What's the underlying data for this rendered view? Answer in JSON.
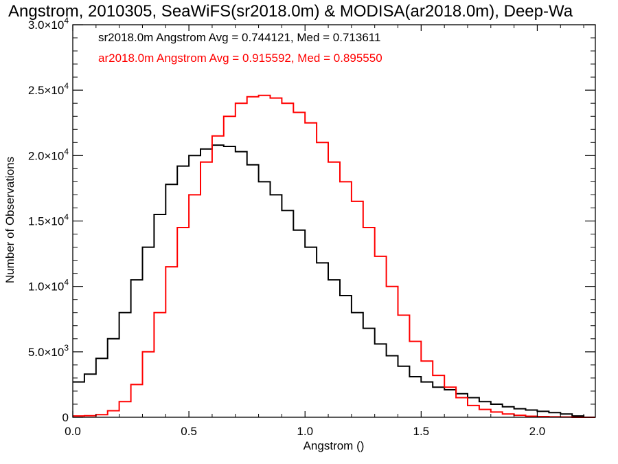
{
  "chart_data": {
    "type": "line",
    "title": "Angstrom, 2010305, SeaWiFS(sr2018.0m) & MODISA(ar2018.0m), Deep-Wa",
    "xlabel": "Angstrom ()",
    "ylabel": "Number of Observations",
    "xlim": [
      0.0,
      2.25
    ],
    "ylim": [
      0,
      30000
    ],
    "grid": false,
    "legend_position": "top-left",
    "x_ticks": [
      {
        "value": 0.0,
        "label": "0.0"
      },
      {
        "value": 0.5,
        "label": "0.5"
      },
      {
        "value": 1.0,
        "label": "1.0"
      },
      {
        "value": 1.5,
        "label": "1.5"
      },
      {
        "value": 2.0,
        "label": "2.0"
      }
    ],
    "y_ticks": [
      {
        "value": 0,
        "mant": "0",
        "exp": ""
      },
      {
        "value": 5000,
        "mant": "5.0×10",
        "exp": "3"
      },
      {
        "value": 10000,
        "mant": "1.0×10",
        "exp": "4"
      },
      {
        "value": 15000,
        "mant": "1.5×10",
        "exp": "4"
      },
      {
        "value": 20000,
        "mant": "2.0×10",
        "exp": "4"
      },
      {
        "value": 25000,
        "mant": "2.5×10",
        "exp": "4"
      },
      {
        "value": 30000,
        "mant": "3.0×10",
        "exp": "4"
      }
    ],
    "series": [
      {
        "name": "sr2018.0m Angstrom Avg = 0.744121, Med = 0.713611",
        "color": "#000000",
        "x": [
          0.0,
          0.05,
          0.1,
          0.15,
          0.2,
          0.25,
          0.3,
          0.35,
          0.4,
          0.45,
          0.5,
          0.55,
          0.6,
          0.65,
          0.7,
          0.75,
          0.8,
          0.85,
          0.9,
          0.95,
          1.0,
          1.05,
          1.1,
          1.15,
          1.2,
          1.25,
          1.3,
          1.35,
          1.4,
          1.45,
          1.5,
          1.55,
          1.6,
          1.65,
          1.7,
          1.75,
          1.8,
          1.85,
          1.9,
          1.95,
          2.0,
          2.05,
          2.1,
          2.15,
          2.2,
          2.25
        ],
        "values": [
          2700,
          3300,
          4500,
          6000,
          8000,
          10500,
          13000,
          15500,
          17800,
          19200,
          20000,
          20500,
          20800,
          20700,
          20300,
          19300,
          18000,
          17000,
          15800,
          14300,
          13000,
          11800,
          10500,
          9300,
          8000,
          6800,
          5600,
          4700,
          3900,
          3100,
          2700,
          2300,
          2100,
          1800,
          1500,
          1200,
          1000,
          800,
          650,
          550,
          450,
          350,
          250,
          100,
          0,
          0
        ]
      },
      {
        "name": "ar2018.0m Angstrom Avg = 0.915592, Med = 0.895550",
        "color": "#ff0000",
        "x": [
          0.0,
          0.05,
          0.1,
          0.15,
          0.2,
          0.25,
          0.3,
          0.35,
          0.4,
          0.45,
          0.5,
          0.55,
          0.6,
          0.65,
          0.7,
          0.75,
          0.8,
          0.85,
          0.9,
          0.95,
          1.0,
          1.05,
          1.1,
          1.15,
          1.2,
          1.25,
          1.3,
          1.35,
          1.4,
          1.45,
          1.5,
          1.55,
          1.6,
          1.65,
          1.7,
          1.75,
          1.8,
          1.85,
          1.9,
          1.95,
          2.0,
          2.05,
          2.1,
          2.15,
          2.2,
          2.25
        ],
        "values": [
          100,
          120,
          200,
          500,
          1200,
          2500,
          5000,
          8000,
          11500,
          14500,
          17000,
          19500,
          21500,
          23000,
          24000,
          24500,
          24600,
          24400,
          24000,
          23300,
          22500,
          21000,
          19500,
          18000,
          16500,
          14500,
          12300,
          10000,
          7800,
          5800,
          4300,
          3200,
          2300,
          1500,
          900,
          600,
          400,
          250,
          150,
          80,
          50,
          30,
          20,
          0,
          0,
          0
        ]
      }
    ]
  }
}
